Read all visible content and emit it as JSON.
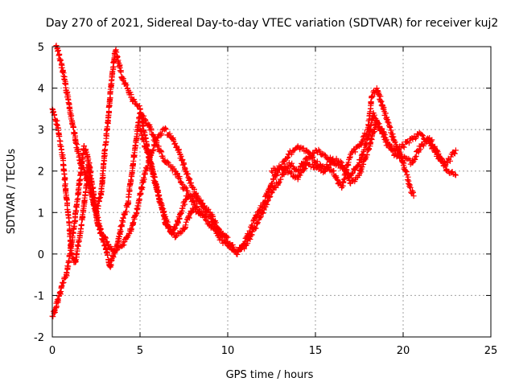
{
  "chart_data": {
    "type": "scatter",
    "title": "Day 270 of 2021, Sidereal Day-to-day VTEC variation (SDTVAR) for receiver kuj2",
    "xlabel": "GPS time / hours",
    "ylabel": "SDTVAR / TECUs",
    "xlim": [
      0,
      25
    ],
    "ylim": [
      -2,
      5
    ],
    "x_ticks": [
      0,
      5,
      10,
      15,
      20,
      25
    ],
    "y_ticks": [
      -2,
      -1,
      0,
      1,
      2,
      3,
      4,
      5
    ],
    "grid": true,
    "marker": "+",
    "series": [
      {
        "name": "SDTVAR",
        "color": "#ff0000",
        "traces": [
          {
            "x": [
              0.0,
              0.3,
              0.6,
              0.9,
              1.1,
              1.3,
              1.6,
              1.9,
              2.1,
              2.3,
              2.6,
              3.0,
              3.3,
              3.5,
              3.7,
              4.0,
              4.3,
              4.7,
              5.0,
              5.5,
              6.0,
              6.5,
              7.0,
              7.5,
              8.0,
              8.5,
              9.0,
              9.5,
              10.0,
              10.5,
              11.0,
              11.5,
              12.0,
              12.5,
              13.0,
              13.5,
              14.0,
              14.5,
              15.0,
              15.5,
              16.0,
              16.5,
              17.0,
              17.5,
              18.0,
              18.3,
              18.7,
              19.0,
              19.5,
              20.0,
              20.5,
              21.0,
              21.5,
              22.0,
              22.5,
              23.0
            ],
            "y": [
              3.5,
              3.1,
              2.3,
              1.0,
              0.0,
              -0.2,
              0.5,
              1.5,
              2.2,
              1.6,
              0.7,
              0.2,
              -0.3,
              0.0,
              0.2,
              0.8,
              1.2,
              2.5,
              3.4,
              3.1,
              2.6,
              2.2,
              2.0,
              1.6,
              1.4,
              1.2,
              1.0,
              0.6,
              0.3,
              0.1,
              0.2,
              0.6,
              1.0,
              1.5,
              1.8,
              2.2,
              2.0,
              2.3,
              2.5,
              2.4,
              2.2,
              2.1,
              1.9,
              2.2,
              2.8,
              3.4,
              3.0,
              2.7,
              2.5,
              2.6,
              2.8,
              2.9,
              2.7,
              2.3,
              2.2,
              2.5
            ]
          },
          {
            "x": [
              0.0,
              0.2,
              0.4,
              0.6,
              0.8,
              1.0,
              1.2,
              1.4,
              1.6,
              1.8,
              2.0,
              2.2,
              2.5,
              2.8,
              3.0,
              3.2,
              3.4,
              3.6,
              3.8,
              4.0,
              4.3,
              4.6,
              5.0,
              5.3,
              5.6,
              6.0,
              6.5,
              7.0,
              7.5,
              8.0,
              8.5,
              9.0,
              9.5,
              10.0,
              10.5,
              11.0,
              11.5,
              12.0,
              12.5,
              13.0,
              13.5,
              14.0,
              14.5,
              15.0,
              15.5,
              16.0,
              16.5,
              17.0,
              17.5,
              18.0,
              18.2,
              18.5,
              18.8,
              19.2,
              19.6,
              20.0,
              20.4,
              20.6
            ],
            "y": [
              -1.5,
              -1.3,
              -1.0,
              -0.7,
              -0.5,
              0.0,
              0.5,
              1.2,
              1.9,
              2.6,
              2.4,
              1.5,
              1.0,
              1.5,
              2.5,
              3.3,
              4.3,
              4.9,
              4.6,
              4.2,
              4.0,
              3.7,
              3.5,
              2.8,
              2.2,
              1.5,
              0.7,
              0.4,
              0.6,
              1.1,
              1.0,
              0.9,
              0.4,
              0.2,
              0.0,
              0.3,
              0.8,
              1.2,
              1.7,
              2.1,
              2.4,
              2.6,
              2.5,
              2.2,
              2.1,
              2.0,
              1.6,
              2.4,
              2.6,
              3.0,
              3.8,
              4.0,
              3.6,
              3.1,
              2.6,
              2.2,
              1.6,
              1.4
            ]
          },
          {
            "x": [
              0.2,
              0.4,
              0.7,
              1.0,
              1.3,
              1.6,
              1.9,
              2.2,
              2.5,
              2.8,
              3.1,
              3.4,
              3.7,
              4.0,
              4.4,
              4.8,
              5.2,
              5.6,
              6.0,
              6.4,
              6.8,
              7.2,
              7.6,
              8.0,
              8.4,
              8.8
            ],
            "y": [
              5.0,
              4.8,
              4.2,
              3.5,
              2.8,
              2.2,
              1.9,
              1.5,
              1.0,
              0.5,
              0.3,
              0.1,
              0.1,
              0.2,
              0.5,
              1.0,
              1.8,
              2.4,
              2.8,
              3.0,
              2.8,
              2.5,
              2.0,
              1.6,
              1.3,
              1.0
            ]
          },
          {
            "x": [
              5.0,
              5.3,
              5.6,
              5.9,
              6.2,
              6.5,
              6.8,
              7.1,
              7.4,
              7.7,
              8.0,
              8.4,
              8.8,
              9.2,
              9.6,
              10.0
            ],
            "y": [
              3.0,
              2.6,
              2.2,
              1.7,
              1.2,
              0.8,
              0.5,
              0.7,
              1.1,
              1.4,
              1.3,
              1.0,
              0.8,
              0.6,
              0.5,
              0.4
            ]
          },
          {
            "x": [
              12.5,
              13.0,
              13.5,
              14.0,
              14.5,
              15.0,
              15.5,
              16.0,
              16.5,
              17.0,
              17.5,
              18.0,
              18.5,
              19.0,
              19.5,
              20.0,
              20.5,
              21.0,
              21.5,
              22.0,
              22.5,
              23.0
            ],
            "y": [
              2.0,
              2.1,
              2.0,
              1.8,
              2.2,
              2.1,
              2.0,
              2.3,
              2.2,
              1.7,
              1.9,
              2.5,
              3.2,
              2.8,
              2.4,
              2.3,
              2.2,
              2.6,
              2.8,
              2.4,
              2.0,
              1.9
            ]
          }
        ]
      }
    ]
  }
}
